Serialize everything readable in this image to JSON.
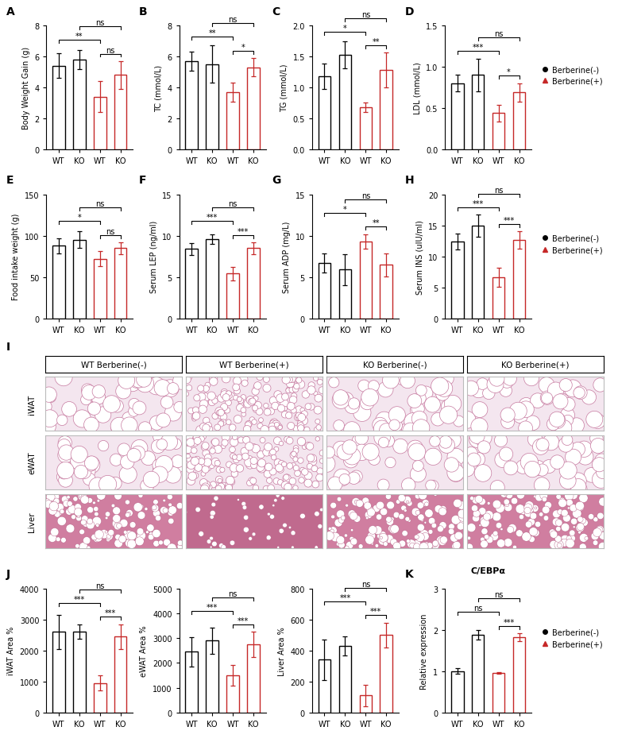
{
  "chart_data": [
    {
      "panel_label": "A",
      "type": "bar",
      "ylabel": "Body Weight Gain (g)",
      "categories": [
        "WT",
        "KO",
        "WT",
        "KO"
      ],
      "series": [
        {
          "name": "Berberine(-)",
          "color": "#000000",
          "marker": "o",
          "values": [
            5.4,
            5.8,
            null,
            null
          ],
          "errors": [
            0.8,
            0.6,
            null,
            null
          ]
        },
        {
          "name": "Berberine(+)",
          "color": "#c62828",
          "marker": "^",
          "values": [
            null,
            null,
            3.4,
            4.8
          ],
          "errors": [
            null,
            null,
            1.0,
            0.9
          ]
        }
      ],
      "ylim": [
        0,
        8
      ],
      "yticks": [
        0,
        2,
        4,
        6,
        8
      ],
      "comparisons": [
        {
          "pair": [
            0,
            2
          ],
          "label": "**"
        },
        {
          "pair": [
            2,
            3
          ],
          "label": "ns"
        },
        {
          "pair": [
            1,
            3
          ],
          "label": "ns"
        }
      ]
    },
    {
      "panel_label": "B",
      "type": "bar",
      "ylabel": "TC (mmol/L)",
      "categories": [
        "WT",
        "KO",
        "WT",
        "KO"
      ],
      "series": [
        {
          "name": "Berberine(-)",
          "color": "#000000",
          "marker": "o",
          "values": [
            5.7,
            5.5,
            null,
            null
          ],
          "errors": [
            0.6,
            1.2,
            null,
            null
          ]
        },
        {
          "name": "Berberine(+)",
          "color": "#c62828",
          "marker": "^",
          "values": [
            null,
            null,
            3.7,
            5.3
          ],
          "errors": [
            null,
            null,
            0.6,
            0.6
          ]
        }
      ],
      "ylim": [
        0,
        8
      ],
      "yticks": [
        0,
        2,
        4,
        6,
        8
      ],
      "comparisons": [
        {
          "pair": [
            0,
            2
          ],
          "label": "**"
        },
        {
          "pair": [
            2,
            3
          ],
          "label": "*"
        },
        {
          "pair": [
            1,
            3
          ],
          "label": "ns"
        }
      ]
    },
    {
      "panel_label": "C",
      "type": "bar",
      "ylabel": "TG (mmol/L)",
      "categories": [
        "WT",
        "KO",
        "WT",
        "KO"
      ],
      "series": [
        {
          "name": "Berberine(-)",
          "color": "#000000",
          "marker": "o",
          "values": [
            1.18,
            1.53,
            null,
            null
          ],
          "errors": [
            0.2,
            0.22,
            null,
            null
          ]
        },
        {
          "name": "Berberine(+)",
          "color": "#c62828",
          "marker": "^",
          "values": [
            null,
            null,
            0.68,
            1.28
          ],
          "errors": [
            null,
            null,
            0.08,
            0.28
          ]
        }
      ],
      "ylim": [
        0,
        2.0
      ],
      "yticks": [
        {
          "value": 0,
          "label": "0.0"
        },
        0.5,
        {
          "value": 1,
          "label": "1.0"
        },
        1.5,
        {
          "value": 2,
          "label": "2.0"
        }
      ],
      "comparisons": [
        {
          "pair": [
            0,
            2
          ],
          "label": "*"
        },
        {
          "pair": [
            2,
            3
          ],
          "label": "**"
        },
        {
          "pair": [
            1,
            3
          ],
          "label": "ns"
        }
      ]
    },
    {
      "panel_label": "D",
      "type": "bar",
      "ylabel": "LDL (mmol/L)",
      "categories": [
        "WT",
        "KO",
        "WT",
        "KO"
      ],
      "legend": "center left",
      "series": [
        {
          "name": "Berberine(-)",
          "color": "#000000",
          "marker": "o",
          "values": [
            0.8,
            0.9,
            null,
            null
          ],
          "errors": [
            0.1,
            0.2,
            null,
            null
          ]
        },
        {
          "name": "Berberine(+)",
          "color": "#c62828",
          "marker": "^",
          "values": [
            null,
            null,
            0.44,
            0.69
          ],
          "errors": [
            null,
            null,
            0.1,
            0.11
          ]
        }
      ],
      "ylim": [
        0,
        1.5
      ],
      "yticks": [
        {
          "value": 0,
          "label": "0.0"
        },
        0.5,
        {
          "value": 1,
          "label": "1.0"
        },
        1.5
      ],
      "comparisons": [
        {
          "pair": [
            0,
            2
          ],
          "label": "***"
        },
        {
          "pair": [
            2,
            3
          ],
          "label": "*"
        },
        {
          "pair": [
            1,
            3
          ],
          "label": "ns"
        }
      ]
    },
    {
      "panel_label": "E",
      "type": "bar",
      "ylabel": "Food intake weight (g)",
      "categories": [
        "WT",
        "KO",
        "WT",
        "KO"
      ],
      "series": [
        {
          "name": "Berberine(-)",
          "color": "#000000",
          "marker": "o",
          "values": [
            88,
            95,
            null,
            null
          ],
          "errors": [
            9,
            10,
            null,
            null
          ]
        },
        {
          "name": "Berberine(+)",
          "color": "#c62828",
          "marker": "^",
          "values": [
            null,
            null,
            72,
            85
          ],
          "errors": [
            null,
            null,
            9,
            7
          ]
        }
      ],
      "ylim": [
        0,
        150
      ],
      "yticks": [
        0,
        50,
        100,
        150
      ],
      "comparisons": [
        {
          "pair": [
            0,
            2
          ],
          "label": "*"
        },
        {
          "pair": [
            2,
            3
          ],
          "label": "ns"
        },
        {
          "pair": [
            1,
            3
          ],
          "label": "ns"
        }
      ]
    },
    {
      "panel_label": "F",
      "type": "bar",
      "ylabel": "Serum LEP (ng/ml)",
      "categories": [
        "WT",
        "KO",
        "WT",
        "KO"
      ],
      "series": [
        {
          "name": "Berberine(-)",
          "color": "#000000",
          "marker": "o",
          "values": [
            8.4,
            9.6,
            null,
            null
          ],
          "errors": [
            0.7,
            0.6,
            null,
            null
          ]
        },
        {
          "name": "Berberine(+)",
          "color": "#c62828",
          "marker": "^",
          "values": [
            null,
            null,
            5.4,
            8.5
          ],
          "errors": [
            null,
            null,
            0.8,
            0.7
          ]
        }
      ],
      "ylim": [
        0,
        15
      ],
      "yticks": [
        0,
        5,
        10,
        15
      ],
      "comparisons": [
        {
          "pair": [
            0,
            2
          ],
          "label": "***"
        },
        {
          "pair": [
            2,
            3
          ],
          "label": "***"
        },
        {
          "pair": [
            1,
            3
          ],
          "label": "ns"
        }
      ]
    },
    {
      "panel_label": "G",
      "type": "bar",
      "ylabel": "Serum ADP (mg/L)",
      "categories": [
        "WT",
        "KO",
        "WT",
        "KO"
      ],
      "series": [
        {
          "name": "Berberine(-)",
          "color": "#000000",
          "marker": "o",
          "values": [
            6.7,
            5.9,
            null,
            null
          ],
          "errors": [
            1.2,
            1.9,
            null,
            null
          ]
        },
        {
          "name": "Berberine(+)",
          "color": "#c62828",
          "marker": "^",
          "values": [
            null,
            null,
            9.3,
            6.5
          ],
          "errors": [
            null,
            null,
            0.9,
            1.4
          ]
        }
      ],
      "ylim": [
        0,
        15
      ],
      "yticks": [
        0,
        5,
        10,
        15
      ],
      "comparisons": [
        {
          "pair": [
            0,
            2
          ],
          "label": "*"
        },
        {
          "pair": [
            2,
            3
          ],
          "label": "**"
        },
        {
          "pair": [
            1,
            3
          ],
          "label": "ns"
        }
      ]
    },
    {
      "panel_label": "H",
      "type": "bar",
      "ylabel": "Serum INS (uIU/ml)",
      "categories": [
        "WT",
        "KO",
        "WT",
        "KO"
      ],
      "legend": "center left",
      "series": [
        {
          "name": "Berberine(-)",
          "color": "#000000",
          "marker": "o",
          "values": [
            12.4,
            14.9,
            null,
            null
          ],
          "errors": [
            1.3,
            1.8,
            null,
            null
          ]
        },
        {
          "name": "Berberine(+)",
          "color": "#c62828",
          "marker": "^",
          "values": [
            null,
            null,
            6.6,
            12.6
          ],
          "errors": [
            null,
            null,
            1.5,
            1.4
          ]
        }
      ],
      "ylim": [
        0,
        20
      ],
      "yticks": [
        0,
        5,
        10,
        15,
        20
      ],
      "comparisons": [
        {
          "pair": [
            0,
            2
          ],
          "label": "***"
        },
        {
          "pair": [
            2,
            3
          ],
          "label": "***"
        },
        {
          "pair": [
            1,
            3
          ],
          "label": "ns"
        }
      ]
    },
    {
      "panel_label": "J",
      "type": "bar",
      "ylabel": "iWAT Area %",
      "categories": [
        "WT",
        "KO",
        "WT",
        "KO"
      ],
      "series": [
        {
          "name": "Berberine(-)",
          "color": "#000000",
          "marker": "o",
          "values": [
            2600,
            2600,
            null,
            null
          ],
          "errors": [
            550,
            230,
            null,
            null
          ]
        },
        {
          "name": "Berberine(+)",
          "color": "#c62828",
          "marker": "^",
          "values": [
            null,
            null,
            950,
            2450
          ],
          "errors": [
            null,
            null,
            250,
            400
          ]
        }
      ],
      "ylim": [
        0,
        4000
      ],
      "yticks": [
        0,
        1000,
        2000,
        3000,
        4000
      ],
      "comparisons": [
        {
          "pair": [
            0,
            2
          ],
          "label": "***"
        },
        {
          "pair": [
            2,
            3
          ],
          "label": "***"
        },
        {
          "pair": [
            1,
            3
          ],
          "label": "ns"
        }
      ]
    },
    {
      "type": "bar",
      "ylabel": "eWAT Area %",
      "categories": [
        "WT",
        "KO",
        "WT",
        "KO"
      ],
      "series": [
        {
          "name": "Berberine(-)",
          "color": "#000000",
          "marker": "o",
          "values": [
            2450,
            2900,
            null,
            null
          ],
          "errors": [
            600,
            520,
            null,
            null
          ]
        },
        {
          "name": "Berberine(+)",
          "color": "#c62828",
          "marker": "^",
          "values": [
            null,
            null,
            1500,
            2750
          ],
          "errors": [
            null,
            null,
            420,
            500
          ]
        }
      ],
      "ylim": [
        0,
        5000
      ],
      "yticks": [
        0,
        1000,
        2000,
        3000,
        4000,
        5000
      ],
      "comparisons": [
        {
          "pair": [
            0,
            2
          ],
          "label": "***"
        },
        {
          "pair": [
            2,
            3
          ],
          "label": "***"
        },
        {
          "pair": [
            1,
            3
          ],
          "label": "ns"
        }
      ]
    },
    {
      "type": "bar",
      "ylabel": "Liver Area %",
      "categories": [
        "WT",
        "KO",
        "WT",
        "KO"
      ],
      "series": [
        {
          "name": "Berberine(-)",
          "color": "#000000",
          "marker": "o",
          "values": [
            340,
            430,
            null,
            null
          ],
          "errors": [
            130,
            60,
            null,
            null
          ]
        },
        {
          "name": "Berberine(+)",
          "color": "#c62828",
          "marker": "^",
          "values": [
            null,
            null,
            110,
            500
          ],
          "errors": [
            null,
            null,
            70,
            80
          ]
        }
      ],
      "ylim": [
        0,
        800
      ],
      "yticks": [
        0,
        200,
        400,
        600,
        800
      ],
      "comparisons": [
        {
          "pair": [
            0,
            2
          ],
          "label": "***"
        },
        {
          "pair": [
            2,
            3
          ],
          "label": "***"
        },
        {
          "pair": [
            1,
            3
          ],
          "label": "ns"
        }
      ]
    },
    {
      "panel_label": "K",
      "type": "bar",
      "title": "C/EBPα",
      "ylabel": "Relative expression",
      "categories": [
        "WT",
        "KO",
        "WT",
        "KO"
      ],
      "legend": "center left",
      "series": [
        {
          "name": "Berberine(-)",
          "color": "#000000",
          "marker": "o",
          "values": [
            1.0,
            1.88,
            null,
            null
          ],
          "errors": [
            0.07,
            0.12,
            null,
            null
          ]
        },
        {
          "name": "Berberine(+)",
          "color": "#c62828",
          "marker": "^",
          "values": [
            null,
            null,
            0.95,
            1.82
          ],
          "errors": [
            null,
            null,
            0.02,
            0.1
          ]
        }
      ],
      "ylim": [
        0,
        3
      ],
      "yticks": [
        0,
        1,
        2,
        3
      ],
      "comparisons": [
        {
          "pair": [
            0,
            2
          ],
          "label": "ns"
        },
        {
          "pair": [
            2,
            3
          ],
          "label": "***"
        },
        {
          "pair": [
            1,
            3
          ],
          "label": "ns"
        }
      ]
    }
  ],
  "image_panel": {
    "panel_label": "I",
    "columns": [
      "WT Berberine(-)",
      "WT Berberine(+)",
      "KO Berberine(-)",
      "KO Berberine(+)"
    ],
    "rows": [
      "iWAT",
      "eWAT",
      "Liver"
    ]
  }
}
